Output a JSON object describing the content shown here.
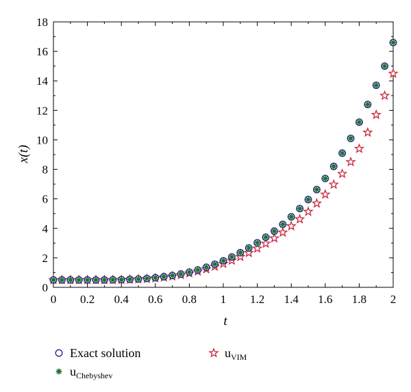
{
  "chart_data": {
    "type": "scatter",
    "xlabel": "t",
    "ylabel": "x(t)",
    "xlim": [
      0,
      2
    ],
    "ylim": [
      0,
      18
    ],
    "xticks": [
      "0",
      "0.2",
      "0.4",
      "0.6",
      "0.8",
      "1",
      "1.2",
      "1.4",
      "1.6",
      "1.8",
      "2"
    ],
    "yticks": [
      "0",
      "2",
      "4",
      "6",
      "8",
      "10",
      "12",
      "14",
      "16",
      "18"
    ],
    "grid": false,
    "legend_position": "bottom",
    "series": [
      {
        "name": "Exact solution",
        "marker": "circle",
        "color": "#1f1f8f",
        "x": [
          0,
          0.05,
          0.1,
          0.15,
          0.2,
          0.25,
          0.3,
          0.35,
          0.4,
          0.45,
          0.5,
          0.55,
          0.6,
          0.65,
          0.7,
          0.75,
          0.8,
          0.85,
          0.9,
          0.95,
          1.0,
          1.05,
          1.1,
          1.15,
          1.2,
          1.25,
          1.3,
          1.35,
          1.4,
          1.45,
          1.5,
          1.55,
          1.6,
          1.65,
          1.7,
          1.75,
          1.8,
          1.85,
          1.9,
          1.95,
          2.0
        ],
        "y": [
          0.5,
          0.5,
          0.5,
          0.5,
          0.5,
          0.5,
          0.5,
          0.51,
          0.52,
          0.54,
          0.56,
          0.6,
          0.65,
          0.72,
          0.8,
          0.9,
          1.03,
          1.18,
          1.36,
          1.57,
          1.8,
          2.06,
          2.35,
          2.67,
          3.02,
          3.4,
          3.81,
          4.27,
          4.78,
          5.34,
          5.95,
          6.63,
          7.38,
          8.2,
          9.1,
          10.1,
          11.2,
          12.4,
          13.7,
          15.0,
          16.6
        ]
      },
      {
        "name": "u",
        "name_sub": "Chebyshev",
        "marker": "asterisk",
        "color": "#1e6e2a",
        "x": [
          0,
          0.05,
          0.1,
          0.15,
          0.2,
          0.25,
          0.3,
          0.35,
          0.4,
          0.45,
          0.5,
          0.55,
          0.6,
          0.65,
          0.7,
          0.75,
          0.8,
          0.85,
          0.9,
          0.95,
          1.0,
          1.05,
          1.1,
          1.15,
          1.2,
          1.25,
          1.3,
          1.35,
          1.4,
          1.45,
          1.5,
          1.55,
          1.6,
          1.65,
          1.7,
          1.75,
          1.8,
          1.85,
          1.9,
          1.95,
          2.0
        ],
        "y": [
          0.5,
          0.5,
          0.5,
          0.5,
          0.5,
          0.5,
          0.5,
          0.51,
          0.52,
          0.54,
          0.56,
          0.6,
          0.65,
          0.72,
          0.8,
          0.9,
          1.03,
          1.18,
          1.36,
          1.57,
          1.8,
          2.06,
          2.35,
          2.67,
          3.02,
          3.4,
          3.81,
          4.27,
          4.78,
          5.34,
          5.95,
          6.63,
          7.38,
          8.2,
          9.1,
          10.1,
          11.2,
          12.4,
          13.7,
          15.0,
          16.6
        ]
      },
      {
        "name": "u",
        "name_sub": "VIM",
        "marker": "star",
        "color": "#c8283a",
        "x": [
          0,
          0.05,
          0.1,
          0.15,
          0.2,
          0.25,
          0.3,
          0.35,
          0.4,
          0.45,
          0.5,
          0.55,
          0.6,
          0.65,
          0.7,
          0.75,
          0.8,
          0.85,
          0.9,
          0.95,
          1.0,
          1.05,
          1.1,
          1.15,
          1.2,
          1.25,
          1.3,
          1.35,
          1.4,
          1.45,
          1.5,
          1.55,
          1.6,
          1.65,
          1.7,
          1.75,
          1.8,
          1.85,
          1.9,
          1.95,
          2.0
        ],
        "y": [
          0.5,
          0.5,
          0.5,
          0.5,
          0.5,
          0.5,
          0.5,
          0.5,
          0.51,
          0.53,
          0.55,
          0.58,
          0.62,
          0.68,
          0.75,
          0.84,
          0.95,
          1.08,
          1.23,
          1.41,
          1.6,
          1.82,
          2.07,
          2.34,
          2.64,
          2.97,
          3.33,
          3.72,
          4.15,
          4.62,
          5.13,
          5.69,
          6.3,
          6.97,
          7.7,
          8.5,
          9.4,
          10.5,
          11.7,
          13.0,
          14.5
        ]
      }
    ]
  }
}
